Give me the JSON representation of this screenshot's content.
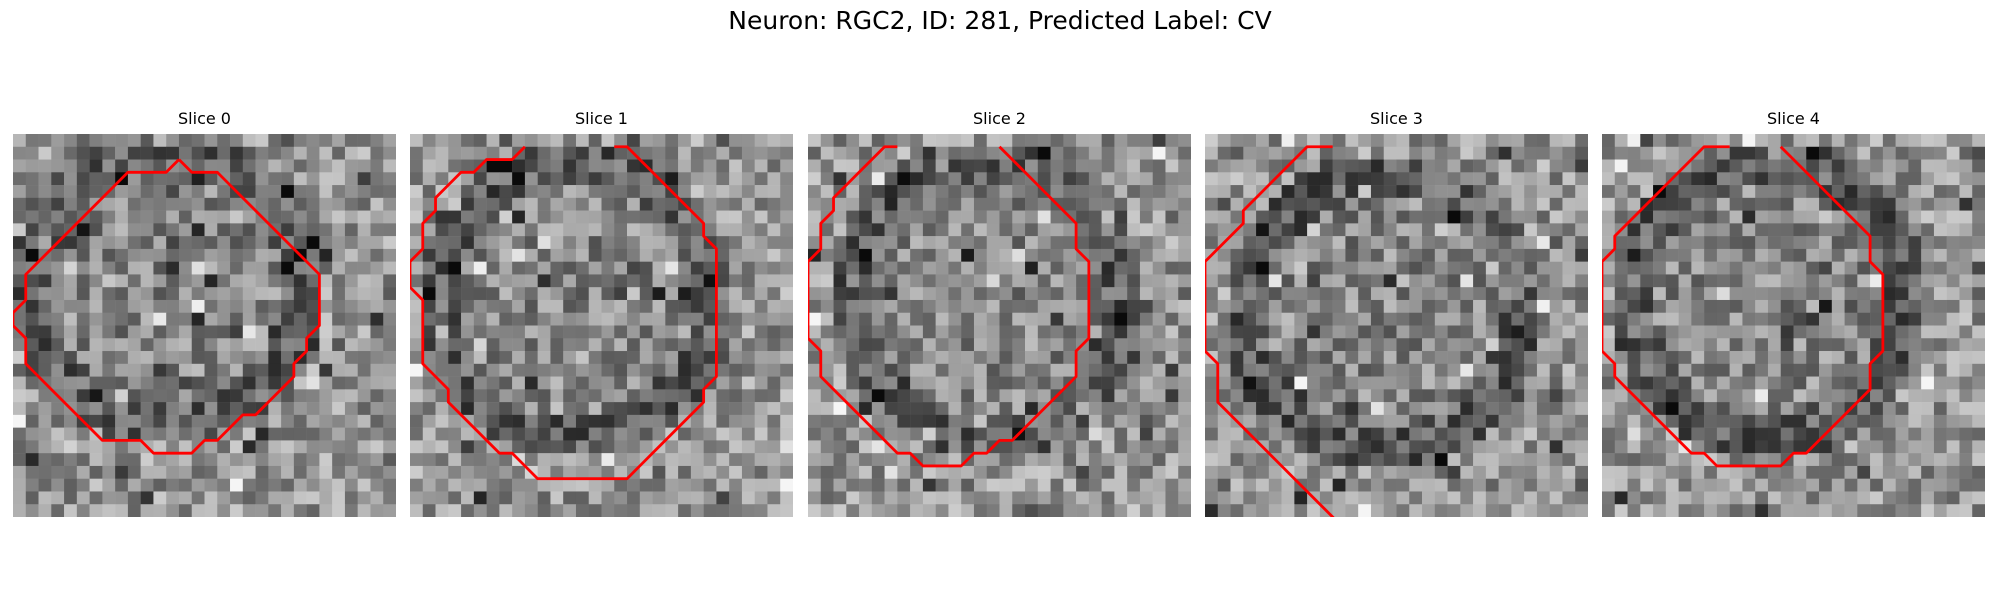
{
  "figure": {
    "title": "Neuron: RGC2, ID: 281, Predicted Label: CV"
  },
  "style": {
    "contour_color": "#ff0000"
  },
  "slices": [
    {
      "label": "Slice 0",
      "contour": [
        [
          13,
          2
        ],
        [
          12,
          3
        ],
        [
          9,
          3
        ],
        [
          8,
          4
        ],
        [
          7,
          5
        ],
        [
          6,
          6
        ],
        [
          5,
          7
        ],
        [
          4,
          8
        ],
        [
          3,
          9
        ],
        [
          2,
          10
        ],
        [
          1,
          11
        ],
        [
          1,
          13
        ],
        [
          0,
          14
        ],
        [
          0,
          15
        ],
        [
          1,
          16
        ],
        [
          1,
          18
        ],
        [
          2,
          19
        ],
        [
          3,
          20
        ],
        [
          4,
          21
        ],
        [
          5,
          22
        ],
        [
          6,
          23
        ],
        [
          7,
          24
        ],
        [
          10,
          24
        ],
        [
          11,
          25
        ],
        [
          14,
          25
        ],
        [
          15,
          24
        ],
        [
          16,
          24
        ],
        [
          17,
          23
        ],
        [
          18,
          22
        ],
        [
          19,
          22
        ],
        [
          20,
          21
        ],
        [
          21,
          20
        ],
        [
          22,
          19
        ],
        [
          22,
          18
        ],
        [
          23,
          17
        ],
        [
          23,
          16
        ],
        [
          24,
          15
        ],
        [
          24,
          11
        ],
        [
          23,
          10
        ],
        [
          22,
          9
        ],
        [
          21,
          8
        ],
        [
          20,
          7
        ],
        [
          19,
          6
        ],
        [
          18,
          5
        ],
        [
          17,
          4
        ],
        [
          16,
          3
        ],
        [
          14,
          3
        ],
        [
          13,
          2
        ]
      ]
    },
    {
      "label": "Slice 1",
      "contour": [
        [
          9,
          1
        ],
        [
          8,
          2
        ],
        [
          6,
          2
        ],
        [
          5,
          3
        ],
        [
          4,
          3
        ],
        [
          3,
          4
        ],
        [
          2,
          5
        ],
        [
          2,
          6
        ],
        [
          1,
          7
        ],
        [
          1,
          9
        ],
        [
          0,
          10
        ],
        [
          0,
          12
        ],
        [
          1,
          13
        ],
        [
          1,
          18
        ],
        [
          2,
          19
        ],
        [
          3,
          20
        ],
        [
          3,
          21
        ],
        [
          4,
          22
        ],
        [
          5,
          23
        ],
        [
          6,
          24
        ],
        [
          7,
          25
        ],
        [
          8,
          25
        ],
        [
          9,
          26
        ],
        [
          10,
          27
        ],
        [
          17,
          27
        ],
        [
          18,
          26
        ],
        [
          19,
          25
        ],
        [
          20,
          24
        ],
        [
          21,
          23
        ],
        [
          22,
          22
        ],
        [
          23,
          21
        ],
        [
          23,
          20
        ],
        [
          24,
          19
        ],
        [
          24,
          9
        ],
        [
          23,
          8
        ],
        [
          23,
          7
        ],
        [
          22,
          6
        ],
        [
          21,
          5
        ],
        [
          20,
          4
        ],
        [
          19,
          3
        ],
        [
          18,
          2
        ],
        [
          17,
          1
        ],
        [
          16,
          1
        ]
      ]
    },
    {
      "label": "Slice 2",
      "contour": [
        [
          7,
          1
        ],
        [
          6,
          1
        ],
        [
          5,
          2
        ],
        [
          4,
          3
        ],
        [
          3,
          4
        ],
        [
          2,
          5
        ],
        [
          2,
          6
        ],
        [
          1,
          7
        ],
        [
          1,
          9
        ],
        [
          0,
          10
        ],
        [
          0,
          16
        ],
        [
          1,
          17
        ],
        [
          1,
          19
        ],
        [
          2,
          20
        ],
        [
          3,
          21
        ],
        [
          4,
          22
        ],
        [
          5,
          23
        ],
        [
          6,
          24
        ],
        [
          7,
          25
        ],
        [
          8,
          25
        ],
        [
          9,
          26
        ],
        [
          12,
          26
        ],
        [
          13,
          25
        ],
        [
          14,
          25
        ],
        [
          15,
          24
        ],
        [
          16,
          24
        ],
        [
          17,
          23
        ],
        [
          18,
          22
        ],
        [
          19,
          21
        ],
        [
          20,
          20
        ],
        [
          21,
          19
        ],
        [
          21,
          17
        ],
        [
          22,
          16
        ],
        [
          22,
          10
        ],
        [
          21,
          9
        ],
        [
          21,
          7
        ],
        [
          20,
          6
        ],
        [
          19,
          5
        ],
        [
          18,
          4
        ],
        [
          17,
          3
        ],
        [
          16,
          2
        ],
        [
          15,
          1
        ]
      ]
    },
    {
      "label": "Slice 3",
      "contour": [
        [
          10,
          1
        ],
        [
          8,
          1
        ],
        [
          7,
          2
        ],
        [
          6,
          3
        ],
        [
          5,
          4
        ],
        [
          4,
          5
        ],
        [
          3,
          6
        ],
        [
          3,
          7
        ],
        [
          2,
          8
        ],
        [
          1,
          9
        ],
        [
          0,
          10
        ],
        [
          0,
          17
        ],
        [
          1,
          18
        ],
        [
          1,
          21
        ],
        [
          2,
          22
        ],
        [
          3,
          23
        ],
        [
          4,
          24
        ],
        [
          5,
          25
        ],
        [
          6,
          26
        ],
        [
          7,
          27
        ],
        [
          8,
          28
        ],
        [
          9,
          29
        ],
        [
          10,
          30
        ],
        [
          11,
          31
        ],
        [
          12,
          32
        ],
        [
          13,
          33
        ]
      ]
    },
    {
      "label": "Slice 4",
      "contour": [
        [
          10,
          1
        ],
        [
          8,
          1
        ],
        [
          7,
          2
        ],
        [
          6,
          3
        ],
        [
          5,
          4
        ],
        [
          4,
          5
        ],
        [
          3,
          6
        ],
        [
          2,
          7
        ],
        [
          1,
          8
        ],
        [
          1,
          9
        ],
        [
          0,
          10
        ],
        [
          0,
          17
        ],
        [
          1,
          18
        ],
        [
          1,
          19
        ],
        [
          2,
          20
        ],
        [
          3,
          21
        ],
        [
          4,
          22
        ],
        [
          5,
          23
        ],
        [
          6,
          24
        ],
        [
          7,
          25
        ],
        [
          8,
          25
        ],
        [
          9,
          26
        ],
        [
          14,
          26
        ],
        [
          15,
          25
        ],
        [
          16,
          25
        ],
        [
          17,
          24
        ],
        [
          18,
          23
        ],
        [
          19,
          22
        ],
        [
          20,
          21
        ],
        [
          21,
          20
        ],
        [
          21,
          18
        ],
        [
          22,
          17
        ],
        [
          22,
          11
        ],
        [
          21,
          10
        ],
        [
          21,
          8
        ],
        [
          20,
          7
        ],
        [
          19,
          6
        ],
        [
          18,
          5
        ],
        [
          17,
          4
        ],
        [
          16,
          3
        ],
        [
          15,
          2
        ],
        [
          14,
          1
        ]
      ]
    }
  ]
}
